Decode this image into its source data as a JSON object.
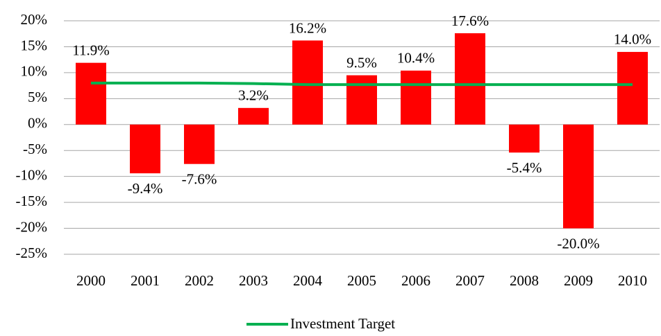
{
  "chart_data": {
    "type": "bar",
    "categories": [
      "2000",
      "2001",
      "2002",
      "2003",
      "2004",
      "2005",
      "2006",
      "2007",
      "2008",
      "2009",
      "2010"
    ],
    "series": [
      {
        "color": "#ff0000",
        "values": [
          11.9,
          -9.4,
          -7.6,
          3.2,
          16.2,
          9.5,
          10.4,
          17.6,
          -5.4,
          -20.0,
          14.0
        ],
        "value_labels": [
          "11.9%",
          "-9.4%",
          "-7.6%",
          "3.2%",
          "16.2%",
          "9.5%",
          "10.4%",
          "17.6%",
          "-5.4%",
          "-20.0%",
          "14.0%"
        ]
      },
      {
        "name": "Investment Target",
        "type": "line",
        "color": "#00b050",
        "values": [
          8.0,
          8.0,
          8.0,
          7.9,
          7.7,
          7.7,
          7.7,
          7.7,
          7.7,
          7.7,
          7.7
        ]
      }
    ],
    "ylim": [
      -25,
      20
    ],
    "yticks": [
      {
        "value": -25,
        "label": "-25%"
      },
      {
        "value": -20,
        "label": "-20%"
      },
      {
        "value": -15,
        "label": "-15%"
      },
      {
        "value": -10,
        "label": "-10%"
      },
      {
        "value": -5,
        "label": "-5%"
      },
      {
        "value": 0,
        "label": "0%"
      },
      {
        "value": 5,
        "label": "5%"
      },
      {
        "value": 10,
        "label": "10%"
      },
      {
        "value": 15,
        "label": "15%"
      },
      {
        "value": 20,
        "label": "20%"
      }
    ],
    "grid": true,
    "legend": "bottom"
  }
}
